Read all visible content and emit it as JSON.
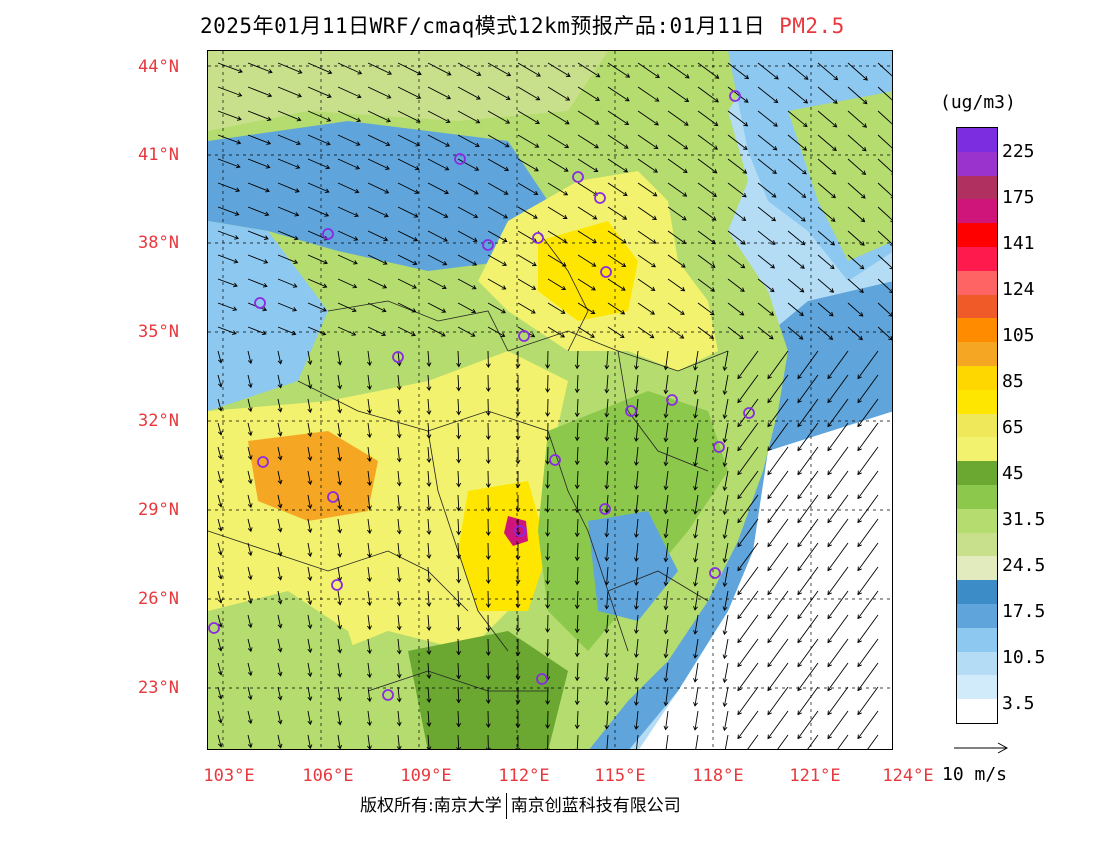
{
  "title": {
    "main": "2025年01月11日WRF/cmaq模式12km预报产品:01月11日",
    "pollutant": "PM2.5",
    "pollutant_color": "#e8383d"
  },
  "axes": {
    "lat_labels": [
      "44°N",
      "41°N",
      "38°N",
      "35°N",
      "32°N",
      "29°N",
      "26°N",
      "23°N"
    ],
    "lon_labels": [
      "103°E",
      "106°E",
      "109°E",
      "112°E",
      "115°E",
      "118°E",
      "121°E",
      "124°E"
    ],
    "label_color": "#e8383d"
  },
  "colorbar": {
    "unit": "(ug/m3)",
    "labels": [
      "225",
      "175",
      "141",
      "124",
      "105",
      "85",
      "65",
      "45",
      "31.5",
      "24.5",
      "17.5",
      "10.5",
      "3.5"
    ],
    "colors": [
      "#7c2de0",
      "#9a32cd",
      "#b03060",
      "#d0157a",
      "#ff0000",
      "#ff1a4d",
      "#ff6464",
      "#f05a28",
      "#ff8c00",
      "#f5a623",
      "#ffd700",
      "#ffe600",
      "#eee85a",
      "#f2f26e",
      "#6aa832",
      "#8cc84b",
      "#b4dc6e",
      "#c8e08c",
      "#e1ebbe",
      "#3c8cc8",
      "#5fa5dc",
      "#8cc8f0",
      "#b4dcf5",
      "#d2ebfa",
      "#ffffff"
    ]
  },
  "reference_vector": {
    "label": "10 m/s"
  },
  "footer": {
    "left": "版权所有:南京大学",
    "right": "南京创蓝科技有限公司"
  },
  "map_colors": {
    "ocean_deep": "#3c8cc8",
    "ocean_mid": "#5fa5dc",
    "ocean_light": "#b4dcf5",
    "clean": "#8cc8f0",
    "green": "#b4dc6e",
    "green_dark": "#6aa832",
    "yellow": "#f2f26e",
    "yellow_strong": "#ffe600",
    "orange": "#f5a623",
    "hotspot": "#d0157a"
  }
}
